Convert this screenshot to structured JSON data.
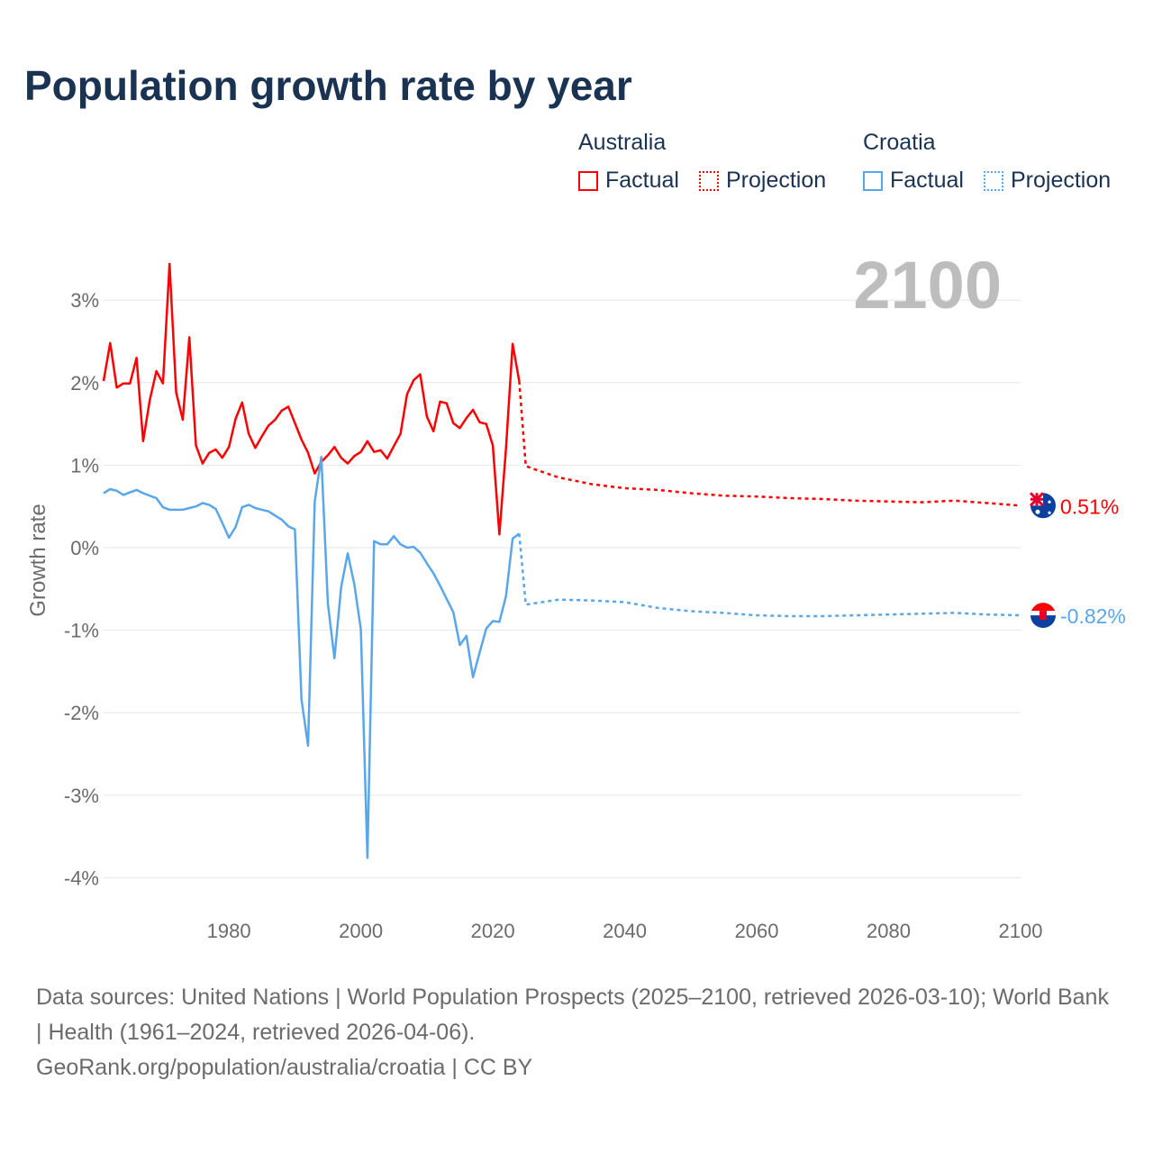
{
  "title": "Population growth rate by year",
  "legend": {
    "groups": [
      {
        "name": "Australia",
        "factual": "Factual",
        "projection": "Projection",
        "color": "#ff0000"
      },
      {
        "name": "Croatia",
        "factual": "Factual",
        "projection": "Projection",
        "color": "#5aa6ea"
      }
    ]
  },
  "chart_data": {
    "type": "line",
    "title": "Population growth rate by year",
    "ylabel": "Growth rate",
    "xlabel": "",
    "current_year_label": "2100",
    "xlim": [
      1961,
      2100
    ],
    "ylim": [
      -4.4,
      3.6
    ],
    "x_ticks": [
      {
        "v": 1980,
        "label": "1980"
      },
      {
        "v": 2000,
        "label": "2000"
      },
      {
        "v": 2020,
        "label": "2020"
      },
      {
        "v": 2040,
        "label": "2040"
      },
      {
        "v": 2060,
        "label": "2060"
      },
      {
        "v": 2080,
        "label": "2080"
      },
      {
        "v": 2100,
        "label": "2100"
      }
    ],
    "y_ticks": [
      {
        "v": 3,
        "label": "3%"
      },
      {
        "v": 2,
        "label": "2%"
      },
      {
        "v": 1,
        "label": "1%"
      },
      {
        "v": 0,
        "label": "0%"
      },
      {
        "v": -1,
        "label": "-1%"
      },
      {
        "v": -2,
        "label": "-2%"
      },
      {
        "v": -3,
        "label": "-3%"
      },
      {
        "v": -4,
        "label": "-4%"
      }
    ],
    "grid": true,
    "series": [
      {
        "name": "Australia",
        "color": "#ff0000",
        "end_label": "0.51%",
        "factual": {
          "start": 1961,
          "values": [
            2.02,
            2.48,
            1.94,
            1.99,
            1.99,
            2.3,
            1.29,
            1.79,
            2.14,
            1.99,
            3.44,
            1.88,
            1.55,
            2.55,
            1.24,
            1.02,
            1.15,
            1.19,
            1.09,
            1.22,
            1.56,
            1.76,
            1.38,
            1.21,
            1.35,
            1.48,
            1.55,
            1.66,
            1.71,
            1.51,
            1.31,
            1.15,
            0.9,
            1.04,
            1.12,
            1.22,
            1.09,
            1.02,
            1.11,
            1.16,
            1.29,
            1.16,
            1.18,
            1.08,
            1.23,
            1.38,
            1.86,
            2.03,
            2.1,
            1.59,
            1.41,
            1.77,
            1.75,
            1.51,
            1.45,
            1.57,
            1.67,
            1.52,
            1.5,
            1.24,
            0.16,
            1.2,
            2.47,
            2.02
          ]
        },
        "projection": {
          "x": [
            2024,
            2025,
            2026,
            2030,
            2035,
            2040,
            2045,
            2050,
            2055,
            2060,
            2065,
            2070,
            2075,
            2080,
            2085,
            2090,
            2095,
            2100
          ],
          "values": [
            2.02,
            0.99,
            0.96,
            0.85,
            0.77,
            0.72,
            0.7,
            0.66,
            0.63,
            0.62,
            0.6,
            0.59,
            0.57,
            0.56,
            0.55,
            0.57,
            0.54,
            0.51
          ]
        }
      },
      {
        "name": "Croatia",
        "color": "#5aa6ea",
        "end_label": "-0.82%",
        "factual": {
          "start": 1961,
          "values": [
            0.66,
            0.71,
            0.69,
            0.64,
            0.67,
            0.7,
            0.66,
            0.63,
            0.6,
            0.49,
            0.46,
            0.46,
            0.46,
            0.48,
            0.5,
            0.54,
            0.52,
            0.47,
            0.3,
            0.12,
            0.25,
            0.49,
            0.52,
            0.48,
            0.46,
            0.44,
            0.39,
            0.34,
            0.26,
            0.22,
            -1.84,
            -2.4,
            0.56,
            1.1,
            -0.68,
            -1.34,
            -0.48,
            -0.07,
            -0.44,
            -0.99,
            -3.76,
            0.08,
            0.04,
            0.04,
            0.14,
            0.04,
            0.0,
            0.01,
            -0.06,
            -0.19,
            -0.31,
            -0.46,
            -0.62,
            -0.78,
            -1.18,
            -1.07,
            -1.57,
            -1.27,
            -0.98,
            -0.89,
            -0.9,
            -0.59,
            0.11,
            0.17
          ]
        },
        "projection": {
          "x": [
            2024,
            2025,
            2030,
            2035,
            2040,
            2045,
            2050,
            2055,
            2060,
            2065,
            2070,
            2075,
            2080,
            2085,
            2090,
            2095,
            2100
          ],
          "values": [
            0.17,
            -0.69,
            -0.63,
            -0.64,
            -0.66,
            -0.73,
            -0.77,
            -0.79,
            -0.82,
            -0.83,
            -0.83,
            -0.82,
            -0.81,
            -0.8,
            -0.79,
            -0.81,
            -0.82
          ]
        }
      }
    ]
  },
  "footer": {
    "sources": "Data sources: United Nations | World Population Prospects (2025–2100, retrieved 2026-03-10); World Bank | Health (1961–2024, retrieved 2026-04-06).",
    "credit": "GeoRank.org/population/australia/croatia | CC BY"
  }
}
